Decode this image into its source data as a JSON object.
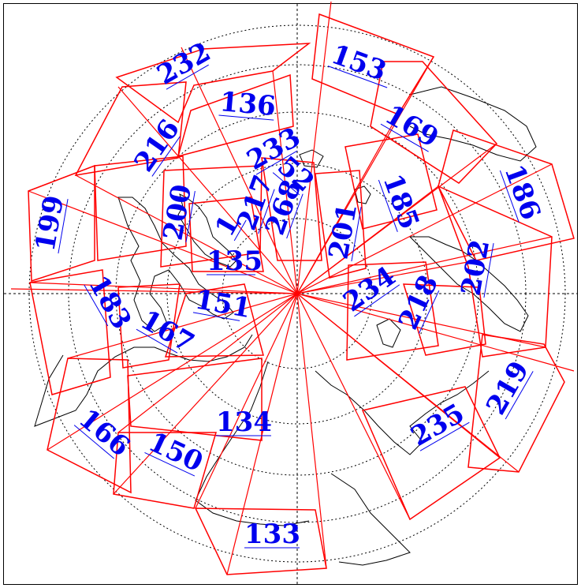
{
  "map": {
    "colors": {
      "track": "#ff0000",
      "label": "#0000ee",
      "coast": "#000000",
      "grid": "#000000"
    },
    "tracks": [
      {
        "id": "153",
        "text": "153"
      },
      {
        "id": "232",
        "text": "232"
      },
      {
        "id": "136",
        "text": "136"
      },
      {
        "id": "169",
        "text": "169"
      },
      {
        "id": "216",
        "text": "216"
      },
      {
        "id": "233",
        "text": "233"
      },
      {
        "id": "52",
        "text": "52"
      },
      {
        "id": "186",
        "text": "186"
      },
      {
        "id": "185",
        "text": "185"
      },
      {
        "id": "199",
        "text": "199"
      },
      {
        "id": "200",
        "text": "200"
      },
      {
        "id": "217",
        "text": "217"
      },
      {
        "id": "268",
        "text": "268"
      },
      {
        "id": "201",
        "text": "201"
      },
      {
        "id": "1",
        "text": "1"
      },
      {
        "id": "135",
        "text": "135"
      },
      {
        "id": "202",
        "text": "202"
      },
      {
        "id": "234",
        "text": "234"
      },
      {
        "id": "218",
        "text": "218"
      },
      {
        "id": "183",
        "text": "183"
      },
      {
        "id": "151",
        "text": "151"
      },
      {
        "id": "167",
        "text": "167"
      },
      {
        "id": "219",
        "text": "219"
      },
      {
        "id": "166",
        "text": "166"
      },
      {
        "id": "134",
        "text": "134"
      },
      {
        "id": "235",
        "text": "235"
      },
      {
        "id": "150",
        "text": "150"
      },
      {
        "id": "133",
        "text": "133"
      }
    ]
  }
}
